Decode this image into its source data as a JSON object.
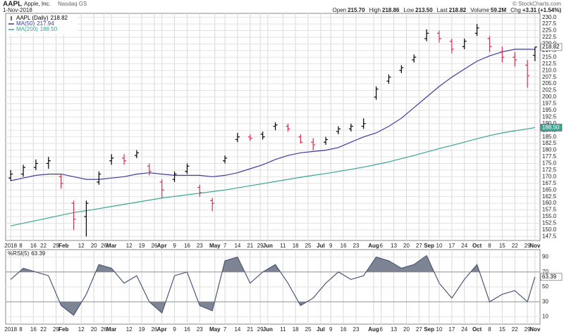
{
  "header": {
    "symbol": "AAPL",
    "name": "Apple, Inc.",
    "exchange": "Nasdaq GS",
    "date": "1-Nov-2018",
    "source": "© StockCharts.com",
    "stats": [
      {
        "label": "Open",
        "value": "215.70"
      },
      {
        "label": "High",
        "value": "218.86"
      },
      {
        "label": "Low",
        "value": "213.50"
      },
      {
        "label": "Last",
        "value": "218.82"
      },
      {
        "label": "Volume",
        "value": "59.2M"
      },
      {
        "label": "Chg",
        "value": "+3.31 (+1.54%)"
      }
    ]
  },
  "chart_data": [
    {
      "type": "ohlc",
      "name": "AAPL (Daily)",
      "last_label": "218.82",
      "up_color": "#000000",
      "down_color": "#d3304f",
      "x": [
        0,
        5,
        10,
        15,
        20,
        25,
        30,
        35,
        40,
        45,
        50,
        55,
        60,
        65,
        70,
        75,
        80,
        85,
        90,
        95,
        100,
        105,
        110,
        115,
        120,
        125,
        130,
        135,
        140,
        145,
        150,
        155,
        160,
        165,
        170,
        175,
        180,
        185,
        190,
        195,
        200,
        205,
        208
      ],
      "open": [
        169.5,
        171,
        173.5,
        175,
        170,
        160,
        155,
        168,
        176,
        177,
        178,
        174,
        168,
        169,
        172,
        166,
        161,
        176,
        184,
        185,
        186,
        189,
        189,
        185,
        183,
        183,
        187,
        188,
        189,
        200,
        206,
        210,
        214,
        222,
        224,
        221,
        219,
        224,
        222,
        217,
        215,
        212,
        215.7
      ],
      "high": [
        172.5,
        174.5,
        176.5,
        177.5,
        171,
        161,
        161,
        172,
        178.5,
        178.5,
        180,
        175,
        169,
        172,
        175,
        167,
        162,
        178,
        186.5,
        186,
        187,
        190.5,
        190,
        186,
        184.5,
        185,
        189,
        190,
        192,
        204,
        208.5,
        212,
        216,
        225.5,
        225,
        222,
        222,
        227.5,
        223,
        219,
        217,
        214,
        218.86
      ],
      "low": [
        168.5,
        170,
        172.5,
        173,
        165.5,
        150,
        147.5,
        167,
        174.5,
        174.5,
        177,
        170.5,
        162,
        168,
        171,
        162.5,
        157,
        175,
        183,
        183.5,
        184,
        187.5,
        187,
        182.5,
        180,
        182,
        186,
        187,
        188,
        199,
        205,
        209,
        213,
        221,
        220.5,
        216.5,
        218,
        223,
        217,
        213,
        211.5,
        203.5,
        213.5
      ],
      "close": [
        171,
        173.5,
        175,
        176,
        167.5,
        154,
        160,
        171,
        177,
        176,
        179,
        172,
        165,
        171,
        174,
        164,
        160,
        177,
        185,
        184.5,
        185,
        189.5,
        188,
        183,
        182,
        184,
        188,
        189,
        190,
        203,
        207.5,
        211,
        215,
        224,
        222,
        218,
        221,
        226,
        219,
        215,
        214,
        208,
        218.82
      ],
      "overlays": [
        {
          "name": "MA(50)",
          "last_label": "217.94",
          "color": "#3a3d9c",
          "values": [
            168.5,
            169.5,
            170.5,
            171,
            171,
            170,
            169,
            169,
            169.5,
            170,
            171,
            171.5,
            171,
            170.5,
            170.5,
            170.5,
            170,
            170.5,
            171.5,
            173,
            174.5,
            176.5,
            178,
            179,
            179.5,
            180,
            181,
            183,
            185,
            186.5,
            189,
            192,
            196,
            200,
            204,
            207.5,
            210.5,
            213.5,
            215.5,
            217,
            218,
            218,
            217.94
          ]
        },
        {
          "name": "MA(200)",
          "last_label": "188.50",
          "color": "#3aa595",
          "values": [
            151.5,
            152.5,
            153.5,
            154.5,
            155.5,
            156.5,
            157.2,
            158,
            158.8,
            159.6,
            160.4,
            161.2,
            162,
            162.6,
            163.2,
            163.8,
            164.4,
            165,
            165.8,
            166.6,
            167.4,
            168.2,
            169,
            169.8,
            170.5,
            171.2,
            172,
            172.8,
            173.6,
            174.6,
            175.6,
            176.8,
            178,
            179.3,
            180.6,
            181.8,
            183,
            184.3,
            185.5,
            186.5,
            187.3,
            188,
            188.5
          ]
        }
      ],
      "xlim": [
        -2,
        210
      ],
      "xticks": [
        {
          "value": 0,
          "label": "2018"
        },
        {
          "value": 4,
          "label": "8"
        },
        {
          "value": 9,
          "label": "16"
        },
        {
          "value": 13,
          "label": "22"
        },
        {
          "value": 18,
          "label": "29"
        },
        {
          "value": 21,
          "label": "Feb"
        },
        {
          "value": 28,
          "label": "12"
        },
        {
          "value": 33,
          "label": "20"
        },
        {
          "value": 37,
          "label": "26"
        },
        {
          "value": 40,
          "label": "Mar"
        },
        {
          "value": 47,
          "label": "12"
        },
        {
          "value": 52,
          "label": "19"
        },
        {
          "value": 57,
          "label": "26"
        },
        {
          "value": 60,
          "label": "Apr"
        },
        {
          "value": 65,
          "label": "9"
        },
        {
          "value": 70,
          "label": "16"
        },
        {
          "value": 75,
          "label": "23"
        },
        {
          "value": 81,
          "label": "May"
        },
        {
          "value": 85,
          "label": "7"
        },
        {
          "value": 90,
          "label": "14"
        },
        {
          "value": 95,
          "label": "21"
        },
        {
          "value": 99,
          "label": "29"
        },
        {
          "value": 102,
          "label": "Jun"
        },
        {
          "value": 108,
          "label": "11"
        },
        {
          "value": 113,
          "label": "18"
        },
        {
          "value": 118,
          "label": "25"
        },
        {
          "value": 123,
          "label": "Jul"
        },
        {
          "value": 127,
          "label": "9"
        },
        {
          "value": 132,
          "label": "16"
        },
        {
          "value": 137,
          "label": "23"
        },
        {
          "value": 144,
          "label": "Aug"
        },
        {
          "value": 147,
          "label": "6"
        },
        {
          "value": 152,
          "label": "13"
        },
        {
          "value": 157,
          "label": "20"
        },
        {
          "value": 162,
          "label": "27"
        },
        {
          "value": 166,
          "label": "Sep"
        },
        {
          "value": 170,
          "label": "10"
        },
        {
          "value": 175,
          "label": "17"
        },
        {
          "value": 180,
          "label": "24"
        },
        {
          "value": 185,
          "label": "Oct"
        },
        {
          "value": 190,
          "label": "8"
        },
        {
          "value": 195,
          "label": "15"
        },
        {
          "value": 200,
          "label": "22"
        },
        {
          "value": 205,
          "label": "29"
        },
        {
          "value": 208,
          "label": "Nov"
        }
      ],
      "ylim": [
        146,
        231.5
      ],
      "yticks": [
        147.5,
        {
          "value": 150,
          "label": "150.0"
        },
        152.5,
        {
          "value": 155,
          "label": "155.0"
        },
        157.5,
        {
          "value": 160,
          "label": "160.0"
        },
        162.5,
        {
          "value": 165,
          "label": "165.0"
        },
        167.5,
        {
          "value": 170,
          "label": "170.0"
        },
        172.5,
        {
          "value": 175,
          "label": "175.0"
        },
        177.5,
        {
          "value": 180,
          "label": "180.0"
        },
        182.5,
        {
          "value": 185,
          "label": "185.0"
        },
        187.5,
        {
          "value": 190,
          "label": "190.0"
        },
        192.5,
        {
          "value": 195,
          "label": "195.0"
        },
        197.5,
        {
          "value": 200,
          "label": "200.0"
        },
        202.5,
        {
          "value": 205,
          "label": "205.0"
        },
        207.5,
        {
          "value": 210,
          "label": "210.0"
        },
        212.5,
        {
          "value": 215,
          "label": "215.0"
        },
        217.5,
        {
          "value": 220,
          "label": "220.0"
        },
        222.5,
        {
          "value": 225,
          "label": "225.0"
        },
        227.5,
        {
          "value": 230,
          "label": "230.0"
        }
      ],
      "grid": true
    },
    {
      "type": "line",
      "name": "%RSI(5)",
      "last_label": "63.39",
      "color": "#4b5878",
      "fill_color": "#7d8494",
      "overbought": 70,
      "oversold": 30,
      "x": [
        0,
        5,
        10,
        15,
        20,
        25,
        30,
        35,
        40,
        45,
        50,
        55,
        60,
        65,
        70,
        75,
        80,
        85,
        90,
        95,
        100,
        105,
        110,
        115,
        120,
        125,
        130,
        135,
        140,
        145,
        150,
        155,
        160,
        165,
        170,
        175,
        180,
        185,
        190,
        195,
        200,
        205,
        208
      ],
      "values": [
        60,
        75,
        70,
        65,
        25,
        12,
        40,
        80,
        75,
        55,
        65,
        30,
        15,
        65,
        70,
        25,
        18,
        85,
        90,
        55,
        70,
        80,
        55,
        25,
        35,
        55,
        70,
        60,
        65,
        90,
        85,
        75,
        80,
        92,
        55,
        35,
        60,
        80,
        30,
        40,
        45,
        30,
        63.39
      ],
      "xlim": [
        -2,
        210
      ],
      "xticks": [
        {
          "value": 0,
          "label": "2018"
        },
        {
          "value": 4,
          "label": "8"
        },
        {
          "value": 9,
          "label": "16"
        },
        {
          "value": 13,
          "label": "22"
        },
        {
          "value": 18,
          "label": "29"
        },
        {
          "value": 21,
          "label": "Feb"
        },
        {
          "value": 28,
          "label": "12"
        },
        {
          "value": 33,
          "label": "20"
        },
        {
          "value": 37,
          "label": "26"
        },
        {
          "value": 40,
          "label": "Mar"
        },
        {
          "value": 47,
          "label": "12"
        },
        {
          "value": 52,
          "label": "19"
        },
        {
          "value": 57,
          "label": "26"
        },
        {
          "value": 60,
          "label": "Apr"
        },
        {
          "value": 65,
          "label": "9"
        },
        {
          "value": 70,
          "label": "16"
        },
        {
          "value": 75,
          "label": "23"
        },
        {
          "value": 81,
          "label": "May"
        },
        {
          "value": 85,
          "label": "7"
        },
        {
          "value": 90,
          "label": "14"
        },
        {
          "value": 95,
          "label": "21"
        },
        {
          "value": 99,
          "label": "29"
        },
        {
          "value": 102,
          "label": "Jun"
        },
        {
          "value": 108,
          "label": "11"
        },
        {
          "value": 113,
          "label": "18"
        },
        {
          "value": 118,
          "label": "25"
        },
        {
          "value": 123,
          "label": "Jul"
        },
        {
          "value": 127,
          "label": "9"
        },
        {
          "value": 132,
          "label": "16"
        },
        {
          "value": 137,
          "label": "23"
        },
        {
          "value": 144,
          "label": "Aug"
        },
        {
          "value": 147,
          "label": "6"
        },
        {
          "value": 152,
          "label": "13"
        },
        {
          "value": 157,
          "label": "20"
        },
        {
          "value": 162,
          "label": "27"
        },
        {
          "value": 166,
          "label": "Sep"
        },
        {
          "value": 170,
          "label": "10"
        },
        {
          "value": 175,
          "label": "17"
        },
        {
          "value": 180,
          "label": "24"
        },
        {
          "value": 185,
          "label": "Oct"
        },
        {
          "value": 190,
          "label": "8"
        },
        {
          "value": 195,
          "label": "15"
        },
        {
          "value": 200,
          "label": "22"
        },
        {
          "value": 205,
          "label": "29"
        },
        {
          "value": 208,
          "label": "Nov"
        }
      ],
      "ylim": [
        0,
        100
      ],
      "yticks": [
        10,
        30,
        50,
        70,
        90
      ],
      "grid": true
    }
  ]
}
